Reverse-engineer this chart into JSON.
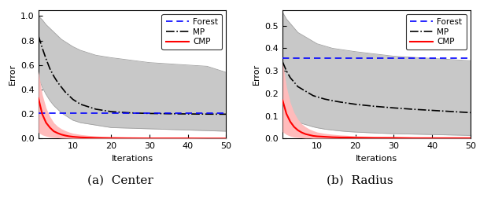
{
  "caption_a": "(a)  Center",
  "caption_b": "(b)  Radius",
  "xlabel": "Iterations",
  "ylabel": "Error",
  "xlim": [
    1,
    50
  ],
  "iterations": [
    1,
    2,
    3,
    4,
    5,
    6,
    7,
    8,
    9,
    10,
    12,
    14,
    16,
    18,
    20,
    25,
    30,
    35,
    40,
    45,
    50
  ],
  "panel_a": {
    "forest_value": 0.205,
    "ylim": [
      0,
      1.05
    ],
    "yticks": [
      0,
      0.2,
      0.4,
      0.6,
      0.8,
      1.0
    ],
    "mp_mean": [
      0.84,
      0.74,
      0.65,
      0.57,
      0.51,
      0.46,
      0.42,
      0.38,
      0.35,
      0.32,
      0.28,
      0.26,
      0.24,
      0.23,
      0.22,
      0.21,
      0.205,
      0.203,
      0.201,
      0.2,
      0.199
    ],
    "mp_upper": [
      1.0,
      0.97,
      0.93,
      0.9,
      0.87,
      0.84,
      0.81,
      0.79,
      0.77,
      0.75,
      0.72,
      0.7,
      0.68,
      0.67,
      0.66,
      0.64,
      0.62,
      0.61,
      0.6,
      0.59,
      0.54
    ],
    "mp_lower": [
      0.5,
      0.42,
      0.36,
      0.31,
      0.27,
      0.24,
      0.21,
      0.19,
      0.17,
      0.15,
      0.13,
      0.12,
      0.11,
      0.1,
      0.09,
      0.085,
      0.08,
      0.075,
      0.07,
      0.065,
      0.06
    ],
    "cmp_mean": [
      0.33,
      0.2,
      0.13,
      0.09,
      0.06,
      0.045,
      0.033,
      0.025,
      0.019,
      0.015,
      0.01,
      0.008,
      0.006,
      0.005,
      0.004,
      0.003,
      0.002,
      0.002,
      0.002,
      0.001,
      0.001
    ],
    "cmp_upper": [
      0.55,
      0.36,
      0.25,
      0.18,
      0.13,
      0.1,
      0.08,
      0.065,
      0.053,
      0.044,
      0.033,
      0.026,
      0.021,
      0.017,
      0.015,
      0.011,
      0.009,
      0.007,
      0.006,
      0.005,
      0.005
    ],
    "cmp_lower": [
      0.05,
      0.03,
      0.02,
      0.013,
      0.009,
      0.006,
      0.004,
      0.003,
      0.002,
      0.001,
      0.001,
      0.001,
      0.001,
      0.001,
      0.001,
      0.001,
      0.001,
      0.001,
      0.001,
      0.001,
      0.001
    ]
  },
  "panel_b": {
    "forest_value": 0.355,
    "ylim": [
      0,
      0.57
    ],
    "yticks": [
      0,
      0.1,
      0.2,
      0.3,
      0.4,
      0.5
    ],
    "mp_mean": [
      0.34,
      0.3,
      0.27,
      0.25,
      0.23,
      0.22,
      0.21,
      0.2,
      0.19,
      0.185,
      0.175,
      0.168,
      0.162,
      0.157,
      0.152,
      0.143,
      0.136,
      0.13,
      0.125,
      0.12,
      0.115
    ],
    "mp_upper": [
      0.56,
      0.53,
      0.51,
      0.49,
      0.47,
      0.46,
      0.45,
      0.44,
      0.43,
      0.42,
      0.41,
      0.4,
      0.395,
      0.39,
      0.385,
      0.375,
      0.365,
      0.36,
      0.355,
      0.35,
      0.345
    ],
    "mp_lower": [
      0.15,
      0.12,
      0.1,
      0.085,
      0.075,
      0.067,
      0.062,
      0.057,
      0.052,
      0.048,
      0.042,
      0.038,
      0.034,
      0.031,
      0.029,
      0.025,
      0.022,
      0.02,
      0.018,
      0.016,
      0.014
    ],
    "cmp_mean": [
      0.17,
      0.11,
      0.075,
      0.052,
      0.037,
      0.027,
      0.02,
      0.016,
      0.012,
      0.01,
      0.008,
      0.006,
      0.005,
      0.005,
      0.004,
      0.003,
      0.003,
      0.002,
      0.002,
      0.002,
      0.002
    ],
    "cmp_upper": [
      0.34,
      0.23,
      0.16,
      0.115,
      0.085,
      0.065,
      0.052,
      0.042,
      0.035,
      0.029,
      0.023,
      0.019,
      0.016,
      0.014,
      0.012,
      0.01,
      0.008,
      0.007,
      0.006,
      0.006,
      0.005
    ],
    "cmp_lower": [
      0.03,
      0.018,
      0.011,
      0.007,
      0.005,
      0.003,
      0.002,
      0.002,
      0.001,
      0.001,
      0.001,
      0.001,
      0.001,
      0.001,
      0.001,
      0.001,
      0.001,
      0.001,
      0.001,
      0.001,
      0.001
    ]
  },
  "colors": {
    "forest": "#0000ff",
    "mp_mean": "#000000",
    "mp_band": "#c8c8c8",
    "mp_border": "#a0a0a0",
    "cmp_mean": "#ff0000",
    "cmp_band": "#ffbbbb",
    "cmp_border": "#ffaaaa"
  }
}
